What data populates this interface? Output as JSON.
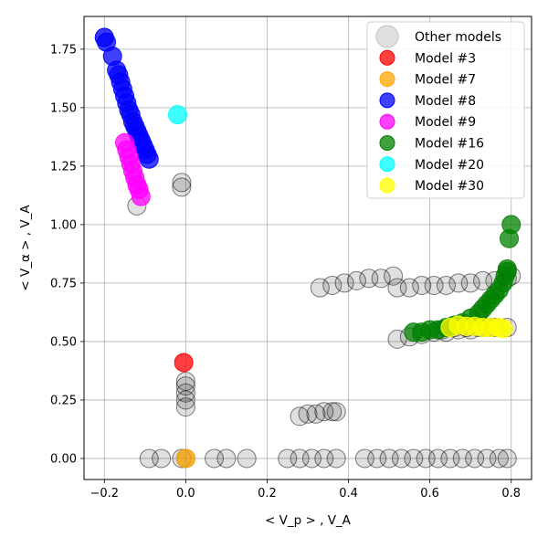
{
  "chart_data": {
    "type": "scatter",
    "xlabel": "< V_p > , V_A",
    "ylabel": "< V_α > , V_A",
    "xlim": [
      -0.25,
      0.85
    ],
    "ylim": [
      -0.09,
      1.89
    ],
    "xticks": [
      -0.2,
      0.0,
      0.2,
      0.4,
      0.6,
      0.8
    ],
    "xtick_labels": [
      "−0.2",
      "0.0",
      "0.2",
      "0.4",
      "0.6",
      "0.8"
    ],
    "yticks": [
      0.0,
      0.25,
      0.5,
      0.75,
      1.0,
      1.25,
      1.5,
      1.75
    ],
    "ytick_labels": [
      "0.00",
      "0.25",
      "0.50",
      "0.75",
      "1.00",
      "1.25",
      "1.50",
      "1.75"
    ],
    "grid": true,
    "legend_position": "top-right",
    "series": [
      {
        "name": "Other models",
        "color": "#000000",
        "points": [
          [
            -0.2,
            1.8
          ],
          [
            -0.01,
            1.18
          ],
          [
            -0.01,
            1.16
          ],
          [
            -0.12,
            1.08
          ],
          [
            -0.09,
            0.0
          ],
          [
            -0.06,
            0.0
          ],
          [
            -0.01,
            0.0
          ],
          [
            0.0,
            0.0
          ],
          [
            0.07,
            0.0
          ],
          [
            0.1,
            0.0
          ],
          [
            0.15,
            0.0
          ],
          [
            0.0,
            0.33
          ],
          [
            0.0,
            0.31
          ],
          [
            0.0,
            0.28
          ],
          [
            0.0,
            0.25
          ],
          [
            0.0,
            0.22
          ],
          [
            0.25,
            0.0
          ],
          [
            0.28,
            0.0
          ],
          [
            0.31,
            0.0
          ],
          [
            0.34,
            0.0
          ],
          [
            0.37,
            0.0
          ],
          [
            0.44,
            0.0
          ],
          [
            0.47,
            0.0
          ],
          [
            0.5,
            0.0
          ],
          [
            0.53,
            0.0
          ],
          [
            0.56,
            0.0
          ],
          [
            0.59,
            0.0
          ],
          [
            0.62,
            0.0
          ],
          [
            0.65,
            0.0
          ],
          [
            0.68,
            0.0
          ],
          [
            0.71,
            0.0
          ],
          [
            0.74,
            0.0
          ],
          [
            0.77,
            0.0
          ],
          [
            0.79,
            0.0
          ],
          [
            0.28,
            0.18
          ],
          [
            0.3,
            0.19
          ],
          [
            0.32,
            0.19
          ],
          [
            0.34,
            0.2
          ],
          [
            0.36,
            0.2
          ],
          [
            0.37,
            0.2
          ],
          [
            0.33,
            0.73
          ],
          [
            0.36,
            0.74
          ],
          [
            0.39,
            0.75
          ],
          [
            0.42,
            0.76
          ],
          [
            0.45,
            0.77
          ],
          [
            0.48,
            0.77
          ],
          [
            0.51,
            0.78
          ],
          [
            0.52,
            0.73
          ],
          [
            0.55,
            0.73
          ],
          [
            0.58,
            0.74
          ],
          [
            0.61,
            0.74
          ],
          [
            0.64,
            0.74
          ],
          [
            0.67,
            0.75
          ],
          [
            0.7,
            0.75
          ],
          [
            0.73,
            0.76
          ],
          [
            0.76,
            0.76
          ],
          [
            0.79,
            0.77
          ],
          [
            0.8,
            0.78
          ],
          [
            0.52,
            0.51
          ],
          [
            0.55,
            0.52
          ],
          [
            0.58,
            0.53
          ],
          [
            0.61,
            0.54
          ],
          [
            0.64,
            0.54
          ],
          [
            0.67,
            0.55
          ],
          [
            0.7,
            0.55
          ],
          [
            0.73,
            0.56
          ],
          [
            0.76,
            0.56
          ],
          [
            0.79,
            0.56
          ],
          [
            0.63,
            0.55
          ],
          [
            0.66,
            0.56
          ],
          [
            0.69,
            0.56
          ],
          [
            0.72,
            0.56
          ],
          [
            0.75,
            0.56
          ]
        ]
      },
      {
        "name": "Model #3",
        "color": "#ff0000",
        "points": [
          [
            -0.005,
            0.41
          ]
        ]
      },
      {
        "name": "Model #7",
        "color": "#ffa500",
        "points": [
          [
            0.0,
            0.0
          ]
        ]
      },
      {
        "name": "Model #8",
        "color": "#0000ff",
        "points": [
          [
            -0.2,
            1.8
          ],
          [
            -0.195,
            1.78
          ],
          [
            -0.18,
            1.72
          ],
          [
            -0.17,
            1.66
          ],
          [
            -0.165,
            1.64
          ],
          [
            -0.16,
            1.61
          ],
          [
            -0.155,
            1.58
          ],
          [
            -0.15,
            1.55
          ],
          [
            -0.145,
            1.52
          ],
          [
            -0.14,
            1.49
          ],
          [
            -0.135,
            1.47
          ],
          [
            -0.13,
            1.44
          ],
          [
            -0.125,
            1.42
          ],
          [
            -0.12,
            1.4
          ],
          [
            -0.115,
            1.38
          ],
          [
            -0.11,
            1.36
          ],
          [
            -0.105,
            1.34
          ],
          [
            -0.1,
            1.32
          ],
          [
            -0.095,
            1.3
          ],
          [
            -0.09,
            1.28
          ]
        ]
      },
      {
        "name": "Model #9",
        "color": "#ff00ff",
        "points": [
          [
            -0.15,
            1.35
          ],
          [
            -0.145,
            1.32
          ],
          [
            -0.14,
            1.29
          ],
          [
            -0.135,
            1.26
          ],
          [
            -0.13,
            1.23
          ],
          [
            -0.125,
            1.2
          ],
          [
            -0.12,
            1.17
          ],
          [
            -0.115,
            1.15
          ],
          [
            -0.11,
            1.12
          ]
        ]
      },
      {
        "name": "Model #16",
        "color": "#008000",
        "points": [
          [
            0.56,
            0.54
          ],
          [
            0.58,
            0.54
          ],
          [
            0.6,
            0.55
          ],
          [
            0.62,
            0.55
          ],
          [
            0.64,
            0.56
          ],
          [
            0.66,
            0.57
          ],
          [
            0.68,
            0.58
          ],
          [
            0.7,
            0.6
          ],
          [
            0.72,
            0.62
          ],
          [
            0.73,
            0.64
          ],
          [
            0.74,
            0.66
          ],
          [
            0.75,
            0.68
          ],
          [
            0.76,
            0.7
          ],
          [
            0.77,
            0.72
          ],
          [
            0.78,
            0.75
          ],
          [
            0.785,
            0.78
          ],
          [
            0.79,
            0.8
          ],
          [
            0.79,
            0.81
          ],
          [
            0.795,
            0.94
          ],
          [
            0.8,
            1.0
          ]
        ]
      },
      {
        "name": "Model #20",
        "color": "#00ffff",
        "points": [
          [
            -0.02,
            1.47
          ]
        ]
      },
      {
        "name": "Model #30",
        "color": "#ffff00",
        "points": [
          [
            0.65,
            0.56
          ],
          [
            0.67,
            0.57
          ],
          [
            0.69,
            0.565
          ],
          [
            0.71,
            0.565
          ],
          [
            0.73,
            0.56
          ],
          [
            0.75,
            0.56
          ],
          [
            0.77,
            0.56
          ],
          [
            0.78,
            0.555
          ]
        ]
      }
    ]
  }
}
